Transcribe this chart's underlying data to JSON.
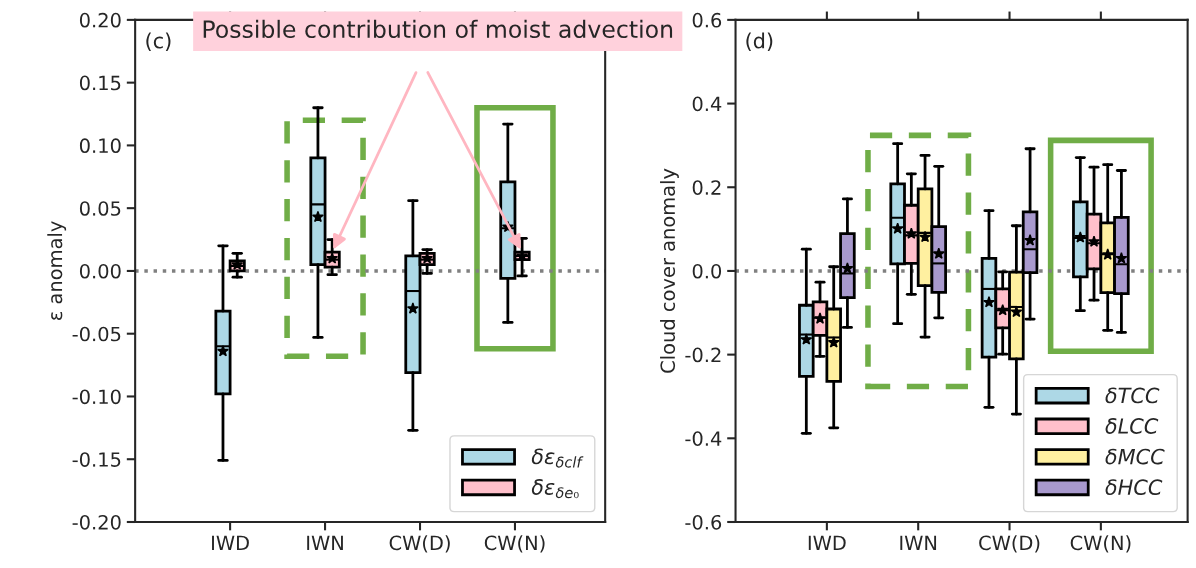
{
  "chart_data": [
    {
      "type": "box",
      "ylabel": "ε anomaly",
      "categories": [
        "IWD",
        "IWN",
        "CW(D)",
        "CW(N)"
      ],
      "ylim": [
        -0.2,
        0.2
      ],
      "yticks": [
        {
          "value": -0.2,
          "label": "-0.20"
        },
        {
          "value": -0.15,
          "label": "-0.15"
        },
        {
          "value": -0.1,
          "label": "-0.10"
        },
        {
          "value": -0.05,
          "label": "-0.05"
        },
        {
          "value": 0,
          "label": "0.00"
        },
        {
          "value": 0.05,
          "label": "0.05"
        },
        {
          "value": 0.1,
          "label": "0.10"
        },
        {
          "value": 0.15,
          "label": "0.15"
        },
        {
          "value": 0.2,
          "label": "0.20"
        }
      ],
      "legend": "bottom right",
      "marker": "star",
      "ref_lines": [
        {
          "axis": "y",
          "value": 0,
          "color": "#808080",
          "line_style": "dotted"
        }
      ],
      "annotations": [
        "(c)",
        "Possible contribution of moist advection"
      ],
      "series": [
        {
          "name": "δε$_{δclf}$",
          "color": "#add8e6",
          "boxes": [
            {
              "low": -0.151,
              "q1": -0.098,
              "median": -0.06,
              "q3": -0.032,
              "high": 0.02,
              "mean": -0.064
            },
            {
              "low": -0.053,
              "q1": 0.005,
              "median": 0.053,
              "q3": 0.09,
              "high": 0.13,
              "mean": 0.043
            },
            {
              "low": -0.127,
              "q1": -0.081,
              "median": -0.016,
              "q3": 0.012,
              "high": 0.056,
              "mean": -0.03
            },
            {
              "low": -0.041,
              "q1": -0.006,
              "median": 0.034,
              "q3": 0.071,
              "high": 0.117,
              "mean": 0.035
            }
          ]
        },
        {
          "name": "δε$_{δe₀}$",
          "color": "#ffc0cb",
          "boxes": [
            {
              "low": -0.005,
              "q1": 0.0,
              "median": 0.004,
              "q3": 0.008,
              "high": 0.014,
              "mean": 0.005
            },
            {
              "low": -0.003,
              "q1": 0.003,
              "median": 0.009,
              "q3": 0.015,
              "high": 0.025,
              "mean": 0.01
            },
            {
              "low": -0.002,
              "q1": 0.005,
              "median": 0.009,
              "q3": 0.014,
              "high": 0.017,
              "mean": 0.01
            },
            {
              "low": -0.004,
              "q1": 0.009,
              "median": 0.012,
              "q3": 0.015,
              "high": 0.026,
              "mean": 0.012
            }
          ]
        }
      ]
    },
    {
      "type": "box",
      "ylabel": "Cloud cover anomaly",
      "categories": [
        "IWD",
        "IWN",
        "CW(D)",
        "CW(N)"
      ],
      "ylim": [
        -0.6,
        0.6
      ],
      "yticks": [
        {
          "value": -0.6,
          "label": "-0.6"
        },
        {
          "value": -0.4,
          "label": "-0.4"
        },
        {
          "value": -0.2,
          "label": "-0.2"
        },
        {
          "value": 0,
          "label": "0.0"
        },
        {
          "value": 0.2,
          "label": "0.2"
        },
        {
          "value": 0.4,
          "label": "0.4"
        },
        {
          "value": 0.6,
          "label": "0.6"
        }
      ],
      "legend": "bottom right",
      "marker": "star",
      "ref_lines": [
        {
          "axis": "y",
          "value": 0,
          "color": "#808080",
          "line_style": "dotted"
        }
      ],
      "annotations": [
        "(d)"
      ],
      "series": [
        {
          "name": "δTCC",
          "color": "#add8e6",
          "boxes": [
            {
              "low": -0.388,
              "q1": -0.252,
              "median": -0.152,
              "q3": -0.082,
              "high": 0.052,
              "mean": -0.164
            },
            {
              "low": -0.126,
              "q1": 0.017,
              "median": 0.127,
              "q3": 0.208,
              "high": 0.304,
              "mean": 0.101
            },
            {
              "low": -0.326,
              "q1": -0.206,
              "median": -0.043,
              "q3": 0.03,
              "high": 0.144,
              "mean": -0.075
            },
            {
              "low": -0.095,
              "q1": -0.014,
              "median": 0.079,
              "q3": 0.165,
              "high": 0.271,
              "mean": 0.08
            }
          ]
        },
        {
          "name": "δLCC",
          "color": "#ffc0cb",
          "boxes": [
            {
              "low": -0.204,
              "q1": -0.154,
              "median": -0.112,
              "q3": -0.074,
              "high": -0.027,
              "mean": -0.114
            },
            {
              "low": -0.056,
              "q1": 0.018,
              "median": 0.085,
              "q3": 0.157,
              "high": 0.232,
              "mean": 0.089
            },
            {
              "low": -0.199,
              "q1": -0.136,
              "median": -0.094,
              "q3": -0.043,
              "high": -0.002,
              "mean": -0.094
            },
            {
              "low": -0.07,
              "q1": 0.005,
              "median": 0.066,
              "q3": 0.136,
              "high": 0.248,
              "mean": 0.07
            }
          ]
        },
        {
          "name": "δMCC",
          "color": "#fff0a0",
          "boxes": [
            {
              "low": -0.375,
              "q1": -0.264,
              "median": -0.159,
              "q3": -0.091,
              "high": 0.01,
              "mean": -0.171
            },
            {
              "low": -0.158,
              "q1": -0.035,
              "median": 0.091,
              "q3": 0.196,
              "high": 0.276,
              "mean": 0.081
            },
            {
              "low": -0.342,
              "q1": -0.21,
              "median": -0.086,
              "q3": -0.003,
              "high": 0.108,
              "mean": -0.098
            },
            {
              "low": -0.142,
              "q1": -0.052,
              "median": 0.04,
              "q3": 0.115,
              "high": 0.254,
              "mean": 0.039
            }
          ]
        },
        {
          "name": "δHCC",
          "color": "#a899cd",
          "boxes": [
            {
              "low": -0.135,
              "q1": -0.064,
              "median": -0.006,
              "q3": 0.089,
              "high": 0.172,
              "mean": 0.006
            },
            {
              "low": -0.112,
              "q1": -0.051,
              "median": 0.018,
              "q3": 0.106,
              "high": 0.25,
              "mean": 0.041
            },
            {
              "low": -0.115,
              "q1": -0.004,
              "median": 0.052,
              "q3": 0.141,
              "high": 0.292,
              "mean": 0.073
            },
            {
              "low": -0.147,
              "q1": -0.054,
              "median": 0.016,
              "q3": 0.128,
              "high": 0.24,
              "mean": 0.03
            }
          ]
        }
      ]
    }
  ]
}
